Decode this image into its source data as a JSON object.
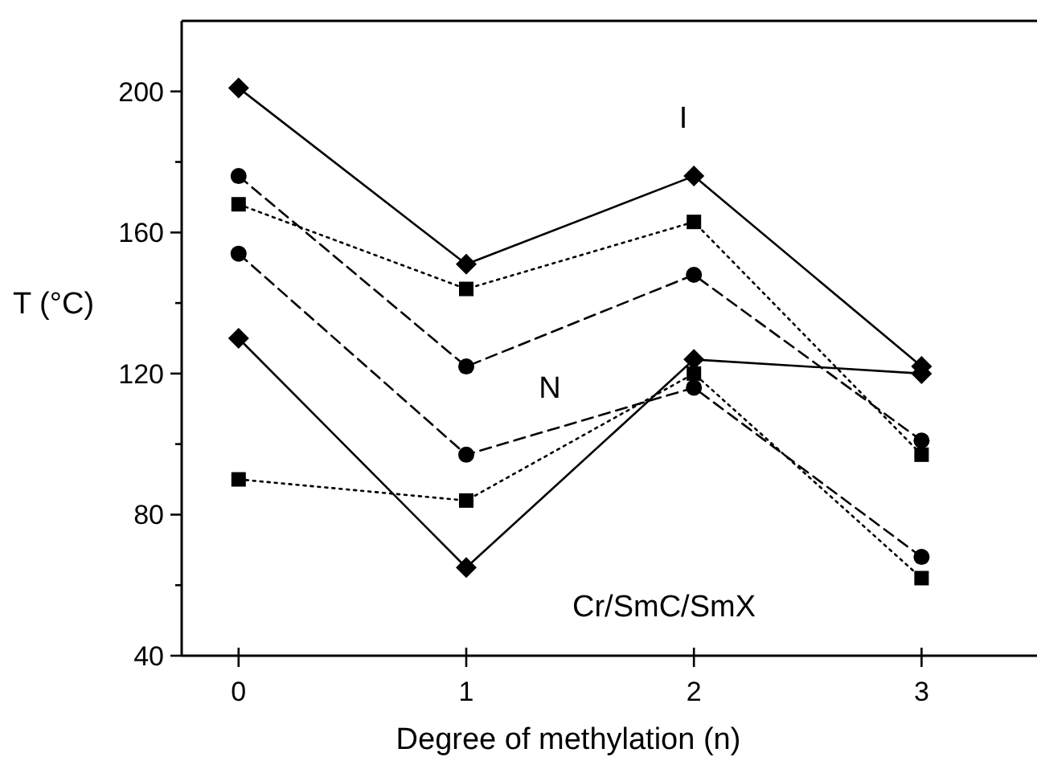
{
  "chart_data": {
    "type": "line",
    "xlabel": "Degree of methylation (n)",
    "ylabel": "T (°C)",
    "x": [
      0,
      1,
      2,
      3
    ],
    "xlim": [
      -0.25,
      3.5
    ],
    "xticks": [
      0,
      1,
      2,
      3
    ],
    "ylim": [
      40,
      220
    ],
    "yticks": [
      40,
      {
        "value": 60,
        "label": null
      },
      80,
      {
        "value": 100,
        "label": null
      },
      120,
      {
        "value": 140,
        "label": null
      },
      160,
      {
        "value": 180,
        "label": null
      },
      200
    ],
    "series": [
      {
        "color": "#000000",
        "marker": "diamond",
        "line_style": "solid",
        "values": [
          201,
          151,
          176,
          122
        ]
      },
      {
        "color": "#000000",
        "marker": "square",
        "line_style": "dotted",
        "values": [
          168,
          144,
          163,
          97
        ]
      },
      {
        "color": "#000000",
        "marker": "circle",
        "line_style": "dashed",
        "values": [
          176,
          122,
          148,
          101
        ]
      },
      {
        "color": "#000000",
        "marker": "circle",
        "line_style": "dashed",
        "values": [
          154,
          97,
          116,
          68
        ]
      },
      {
        "color": "#000000",
        "marker": "diamond",
        "line_style": "solid",
        "values": [
          130,
          65,
          124,
          120
        ]
      },
      {
        "color": "#000000",
        "marker": "square",
        "line_style": "dotted",
        "values": [
          90,
          84,
          120,
          62
        ]
      }
    ],
    "annotations": [
      "I",
      "N",
      "Cr/SmC/SmX"
    ]
  }
}
